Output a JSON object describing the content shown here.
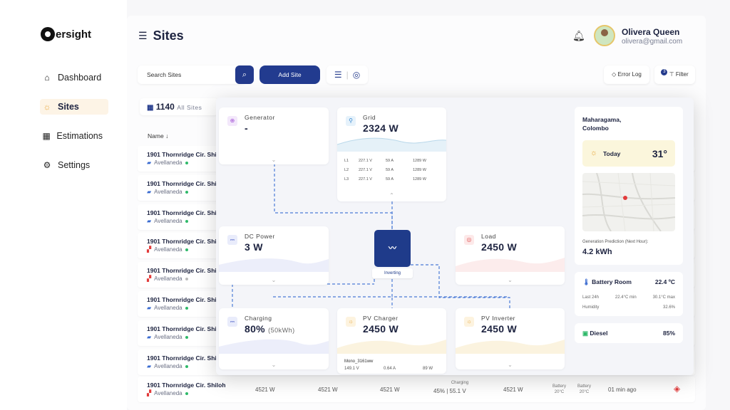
{
  "brand": {
    "name": "ersight"
  },
  "nav": [
    {
      "label": "Dashboard",
      "icon": "home-icon"
    },
    {
      "label": "Sites",
      "icon": "sun-icon"
    },
    {
      "label": "Estimations",
      "icon": "solar-panel-icon"
    },
    {
      "label": "Settings",
      "icon": "gear-icon"
    }
  ],
  "header": {
    "title": "Sites"
  },
  "user": {
    "name": "Olivera Queen",
    "email": "olivera@gmail.com"
  },
  "toolbar": {
    "search_placeholder": "Search Sites",
    "add_label": "Add Site",
    "error_log": "Error Log",
    "filter": "Filter",
    "filter_badge": "3"
  },
  "summary": {
    "count": "1140",
    "count_label": "All Sites"
  },
  "table": {
    "name_header": "Name",
    "rows": [
      {
        "title": "1901 Thornridge Cir. Shiloh",
        "city": "Avellaneda",
        "status": "online",
        "icon": "blue"
      },
      {
        "title": "1901 Thornridge Cir. Shiloh",
        "city": "Avellaneda",
        "status": "online",
        "icon": "blue"
      },
      {
        "title": "1901 Thornridge Cir. Shiloh",
        "city": "Avellaneda",
        "status": "online",
        "icon": "blue"
      },
      {
        "title": "1901 Thornridge Cir. Shiloh",
        "city": "Avellaneda",
        "status": "online",
        "icon": "red"
      },
      {
        "title": "1901 Thornridge Cir. Shiloh",
        "city": "Avellaneda",
        "status": "offline",
        "icon": "red"
      },
      {
        "title": "1901 Thornridge Cir. Shiloh",
        "city": "Avellaneda",
        "status": "online",
        "icon": "blue"
      },
      {
        "title": "1901 Thornridge Cir. Shiloh",
        "city": "Avellaneda",
        "status": "online",
        "icon": "blue"
      },
      {
        "title": "1901 Thornridge Cir. Shiloh",
        "city": "Avellaneda",
        "status": "online",
        "icon": "blue"
      },
      {
        "title": "1901 Thornridge Cir. Shiloh",
        "city": "Avellaneda",
        "status": "online",
        "icon": "red"
      }
    ],
    "last_row_cells": {
      "c1": "4521 W",
      "c2": "4521 W",
      "c3": "4521 W",
      "charging_label": "Charging",
      "charging_val": "45% | 55.1 V",
      "c5": "4521 W",
      "battery_a": "Battery",
      "battery_a_val": "20°C",
      "battery_b": "Battery",
      "battery_b_val": "20°C",
      "time": "01 min ago"
    }
  },
  "detail": {
    "generator": {
      "label": "Generator",
      "value": "-"
    },
    "grid": {
      "label": "Grid",
      "value": "2324 W",
      "lines": [
        {
          "phase": "L1",
          "v": "227.1 V",
          "a": "59 A",
          "w": "1289 W"
        },
        {
          "phase": "L2",
          "v": "227.1 V",
          "a": "59 A",
          "w": "1289 W"
        },
        {
          "phase": "L3",
          "v": "227.1 V",
          "a": "59 A",
          "w": "1289 W"
        }
      ]
    },
    "dc_power": {
      "label": "DC Power",
      "value": "3 W"
    },
    "inverter": {
      "status": "Inverting"
    },
    "load": {
      "label": "Load",
      "value": "2450 W"
    },
    "charging": {
      "label": "Charging",
      "value": "80%",
      "unit": "(50kWh)"
    },
    "pv_charger": {
      "label": "PV Charger",
      "value": "2450 W",
      "device": "Mono_3161ww",
      "v": "149.1 V",
      "a": "0.64 A",
      "w": "89 W"
    },
    "pv_inverter": {
      "label": "PV Inverter",
      "value": "2450 W"
    },
    "location": {
      "line1": "Maharagama,",
      "line2": "Colombo"
    },
    "weather": {
      "label": "Today",
      "temp": "31°"
    },
    "prediction": {
      "label": "Generation Prediction (Next Hour):",
      "value": "4.2 kWh"
    },
    "battery_room": {
      "label": "Battery Room",
      "value": "22.4 ºC",
      "last": "Last 24h",
      "min": "22.4°C min",
      "max": "30.1°C max",
      "humidity_label": "Humidity",
      "humidity": "32.6%"
    },
    "diesel": {
      "label": "Diesel",
      "value": "85%"
    }
  },
  "colors": {
    "accent": "#223b8f",
    "sun": "#e7a63a",
    "online": "#2fb96a",
    "alert": "#e23b3b"
  }
}
